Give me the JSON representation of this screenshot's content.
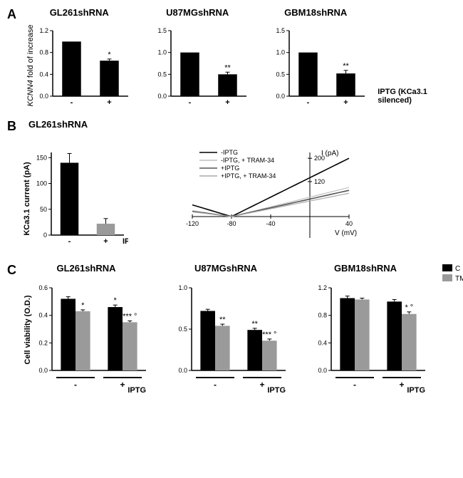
{
  "panels": {
    "A": {
      "label": "A",
      "ylabel_italic": "KCNN4",
      "ylabel_rest": " fold of increase",
      "charts": [
        {
          "title": "GL261shRNA",
          "categories": [
            "-",
            "+"
          ],
          "values": [
            1.0,
            0.65
          ],
          "errors": [
            0,
            0.03
          ],
          "sig": [
            "",
            "*"
          ],
          "ymax": 1.2,
          "ytick_step": 0.4,
          "bar_color": "#000000"
        },
        {
          "title": "U87MGshRNA",
          "categories": [
            "-",
            "+"
          ],
          "values": [
            1.0,
            0.5
          ],
          "errors": [
            0,
            0.05
          ],
          "sig": [
            "",
            "**"
          ],
          "ymax": 1.5,
          "ytick_step": 0.5,
          "bar_color": "#000000"
        },
        {
          "title": "GBM18shRNA",
          "categories": [
            "-",
            "+"
          ],
          "values": [
            1.0,
            0.52
          ],
          "errors": [
            0,
            0.07
          ],
          "sig": [
            "",
            "**"
          ],
          "ymax": 1.5,
          "ytick_step": 0.5,
          "bar_color": "#000000"
        }
      ],
      "right_label": "IPTG   (KCa3.1 silenced)"
    },
    "B": {
      "label": "B",
      "title": "GL261shRNA",
      "bar": {
        "ylabel": "KCa3.1 current (pA)",
        "categories": [
          "-",
          "+"
        ],
        "values": [
          140,
          22
        ],
        "errors": [
          18,
          10
        ],
        "colors": [
          "#000000",
          "#9a9a9a"
        ],
        "ymax": 160,
        "ytick_positions": [
          0,
          50,
          100,
          150
        ],
        "xlabel": "IPTG"
      },
      "iv": {
        "legend": [
          "-IPTG",
          "-IPTG, + TRAM-34",
          "+IPTG",
          "+IPTG, + TRAM-34"
        ],
        "legend_colors": [
          "#000000",
          "#bfbfbf",
          "#555555",
          "#aaaaaa"
        ],
        "xmin": -120,
        "xmax": 40,
        "xtick_step": 40,
        "ymax_label": 200,
        "ytick_positions": [
          120,
          200
        ],
        "axis_label_x": "V (mV)",
        "axis_label_y": "I (pA)"
      }
    },
    "C": {
      "label": "C",
      "ylabel": "Cell viability (O.D.)",
      "legend": [
        {
          "label": "C",
          "color": "#000000"
        },
        {
          "label": "TMZ",
          "color": "#9a9a9a"
        }
      ],
      "charts": [
        {
          "title": "GL261shRNA",
          "groups": [
            "-",
            "+"
          ],
          "series": [
            {
              "values": [
                0.52,
                0.46
              ],
              "errors": [
                0.015,
                0.015
              ],
              "color": "#000000",
              "sig": [
                "",
                "*"
              ]
            },
            {
              "values": [
                0.43,
                0.35
              ],
              "errors": [
                0.01,
                0.01
              ],
              "color": "#9a9a9a",
              "sig": [
                "*",
                "*** °"
              ]
            }
          ],
          "ymax": 0.6,
          "ytick_step": 0.2
        },
        {
          "title": "U87MGshRNA",
          "groups": [
            "-",
            "+"
          ],
          "series": [
            {
              "values": [
                0.72,
                0.49
              ],
              "errors": [
                0.02,
                0.02
              ],
              "color": "#000000",
              "sig": [
                "",
                "**"
              ]
            },
            {
              "values": [
                0.54,
                0.36
              ],
              "errors": [
                0.02,
                0.02
              ],
              "color": "#9a9a9a",
              "sig": [
                "**",
                "*** °"
              ]
            }
          ],
          "ymax": 1.0,
          "ytick_step": 0.5
        },
        {
          "title": "GBM18shRNA",
          "groups": [
            "-",
            "+"
          ],
          "series": [
            {
              "values": [
                1.05,
                1.0
              ],
              "errors": [
                0.03,
                0.03
              ],
              "color": "#000000",
              "sig": [
                "",
                ""
              ]
            },
            {
              "values": [
                1.03,
                0.82
              ],
              "errors": [
                0.02,
                0.03
              ],
              "color": "#9a9a9a",
              "sig": [
                "",
                "* °"
              ]
            }
          ],
          "ymax": 1.2,
          "ytick_step": 0.4
        }
      ],
      "xlabel": "IPTG"
    }
  }
}
